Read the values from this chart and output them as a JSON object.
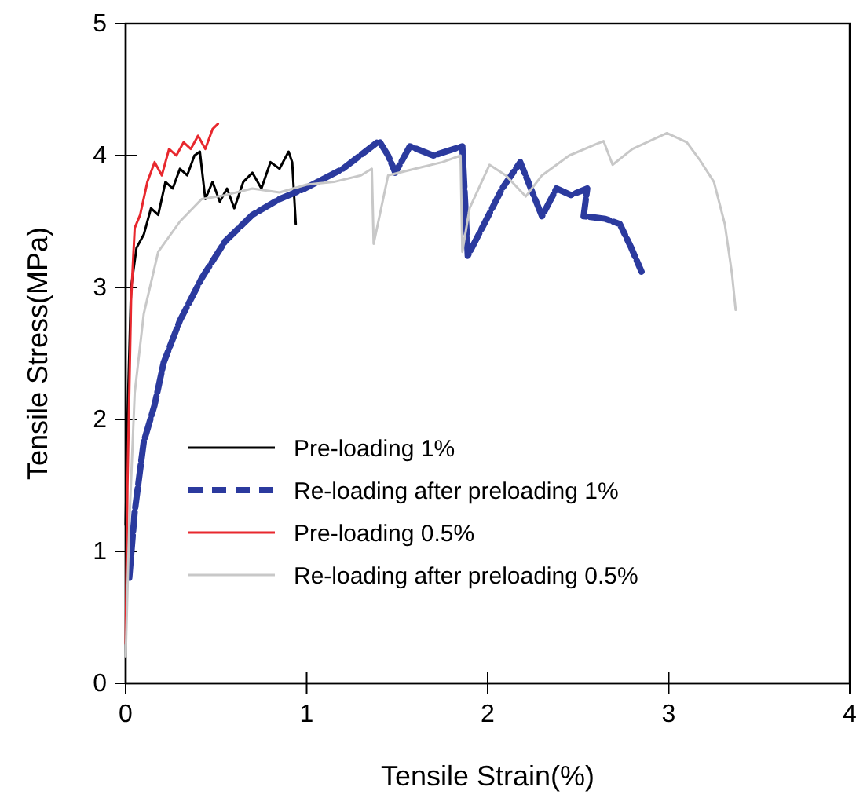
{
  "chart_data": {
    "type": "line",
    "xlabel": "Tensile Strain(%)",
    "ylabel": "Tensile Stress(MPa)",
    "xlim": [
      0,
      4
    ],
    "xticks": [
      0,
      1,
      2,
      3,
      4
    ],
    "ylim": [
      0,
      5
    ],
    "yticks": [
      0,
      1,
      2,
      3,
      4,
      5
    ],
    "grid": false,
    "legend": "bottom left",
    "marker": "none",
    "series": [
      {
        "name": "Pre-loading 1%",
        "color": "#000000",
        "line_style": "solid",
        "x": [
          0.0,
          0.01,
          0.03,
          0.06,
          0.1,
          0.14,
          0.18,
          0.22,
          0.26,
          0.3,
          0.34,
          0.38,
          0.41,
          0.44,
          0.48,
          0.52,
          0.56,
          0.6,
          0.65,
          0.7,
          0.75,
          0.8,
          0.85,
          0.9,
          0.92,
          0.94
        ],
        "values": [
          1.2,
          2.0,
          3.0,
          3.3,
          3.4,
          3.6,
          3.55,
          3.8,
          3.75,
          3.9,
          3.85,
          4.0,
          4.03,
          3.67,
          3.8,
          3.65,
          3.75,
          3.6,
          3.8,
          3.87,
          3.75,
          3.95,
          3.9,
          4.03,
          3.95,
          3.48
        ]
      },
      {
        "name": "Re-loading after preloading 1%",
        "color": "#2b3a9e",
        "line_style": "dashed",
        "x": [
          0.02,
          0.05,
          0.1,
          0.16,
          0.21,
          0.3,
          0.42,
          0.55,
          0.7,
          0.85,
          0.99,
          1.2,
          1.4,
          1.45,
          1.49,
          1.57,
          1.7,
          1.86,
          1.89,
          1.98,
          2.08,
          2.18,
          2.3,
          2.38,
          2.46,
          2.55,
          2.53,
          2.65,
          2.73,
          2.79,
          2.85
        ],
        "values": [
          0.8,
          1.3,
          1.83,
          2.11,
          2.43,
          2.75,
          3.07,
          3.35,
          3.55,
          3.67,
          3.75,
          3.9,
          4.11,
          4.0,
          3.87,
          4.07,
          4.0,
          4.07,
          3.24,
          3.48,
          3.75,
          3.95,
          3.54,
          3.75,
          3.7,
          3.75,
          3.54,
          3.52,
          3.48,
          3.31,
          3.12
        ]
      },
      {
        "name": "Pre-loading 0.5%",
        "color": "#e8282e",
        "line_style": "solid",
        "x": [
          0.0,
          0.01,
          0.03,
          0.05,
          0.08,
          0.12,
          0.16,
          0.2,
          0.24,
          0.28,
          0.32,
          0.36,
          0.4,
          0.44,
          0.48,
          0.51
        ],
        "values": [
          0.3,
          1.5,
          2.9,
          3.45,
          3.55,
          3.8,
          3.95,
          3.85,
          4.05,
          4.0,
          4.1,
          4.05,
          4.15,
          4.05,
          4.2,
          4.24
        ]
      },
      {
        "name": "Re-loading after preloading 0.5%",
        "color": "#c8c8c8",
        "line_style": "solid",
        "x": [
          0.0,
          0.02,
          0.05,
          0.1,
          0.18,
          0.3,
          0.42,
          0.55,
          0.7,
          0.85,
          1.0,
          1.15,
          1.3,
          1.36,
          1.37,
          1.45,
          1.6,
          1.75,
          1.85,
          1.86,
          1.9,
          2.01,
          2.1,
          2.21,
          2.3,
          2.45,
          2.64,
          2.69,
          2.8,
          2.99,
          3.1,
          3.17,
          3.25,
          3.31,
          3.35,
          3.37
        ],
        "values": [
          0.2,
          1.2,
          2.2,
          2.8,
          3.27,
          3.5,
          3.67,
          3.7,
          3.75,
          3.72,
          3.78,
          3.8,
          3.85,
          3.9,
          3.33,
          3.85,
          3.9,
          3.95,
          4.0,
          3.27,
          3.6,
          3.93,
          3.85,
          3.69,
          3.85,
          4.0,
          4.11,
          3.93,
          4.05,
          4.17,
          4.1,
          3.97,
          3.8,
          3.48,
          3.1,
          2.83
        ]
      }
    ]
  }
}
